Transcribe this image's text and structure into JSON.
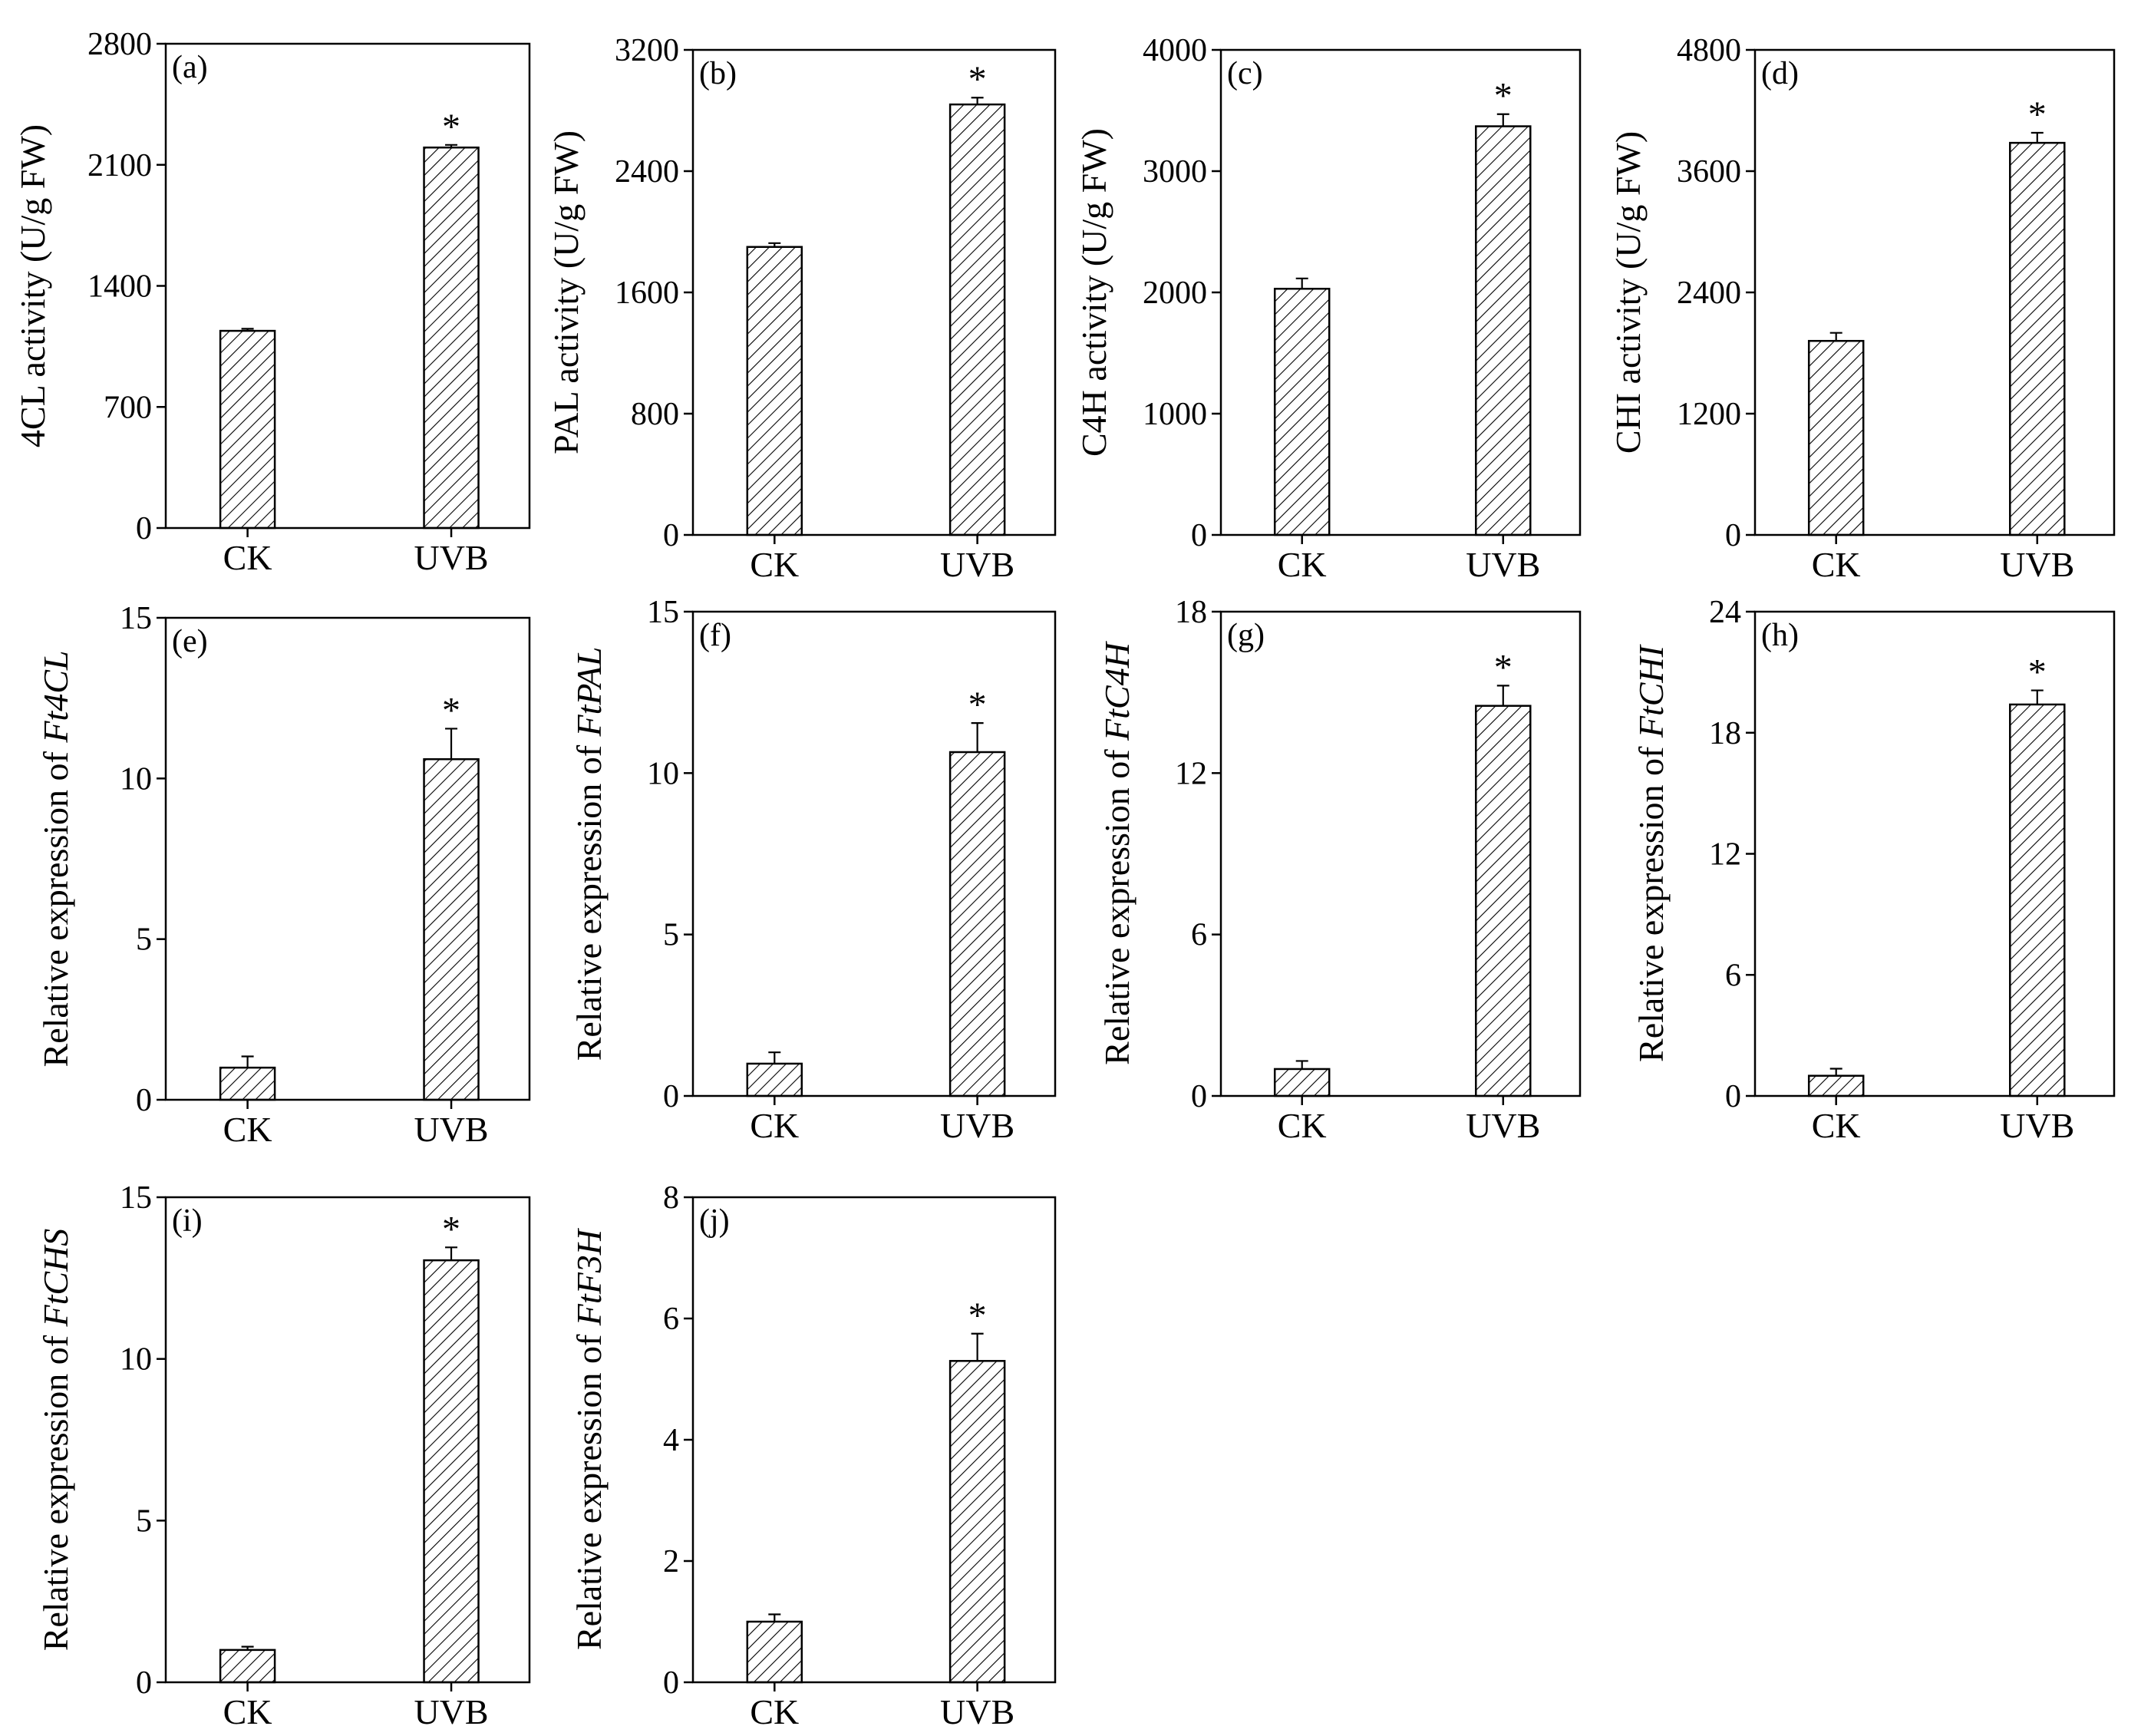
{
  "chart_data": [
    {
      "type": "bar",
      "panel_label": "(a)",
      "ylabel": "4CL activity (U/g FW)",
      "ylabel_prefix": "",
      "ylabel_italic": "",
      "categories": [
        "CK",
        "UVB"
      ],
      "values": [
        1140,
        2200
      ],
      "errors": [
        12,
        15
      ],
      "significance": [
        "",
        "*"
      ],
      "ylim": [
        0,
        2800
      ],
      "yticks": [
        0,
        700,
        1400,
        2100,
        2800
      ]
    },
    {
      "type": "bar",
      "panel_label": "(b)",
      "ylabel": "PAL activity (U/g FW)",
      "ylabel_prefix": "",
      "ylabel_italic": "",
      "categories": [
        "CK",
        "UVB"
      ],
      "values": [
        1900,
        2840
      ],
      "errors": [
        25,
        45
      ],
      "significance": [
        "",
        "*"
      ],
      "ylim": [
        0,
        3200
      ],
      "yticks": [
        0,
        800,
        1600,
        2400,
        3200
      ]
    },
    {
      "type": "bar",
      "panel_label": "(c)",
      "ylabel": "C4H activity (U/g FW)",
      "ylabel_prefix": "",
      "ylabel_italic": "",
      "categories": [
        "CK",
        "UVB"
      ],
      "values": [
        2030,
        3370
      ],
      "errors": [
        85,
        100
      ],
      "significance": [
        "",
        "*"
      ],
      "ylim": [
        0,
        4000
      ],
      "yticks": [
        0,
        1000,
        2000,
        3000,
        4000
      ]
    },
    {
      "type": "bar",
      "panel_label": "(d)",
      "ylabel": "CHI activity (U/g FW)",
      "ylabel_prefix": "",
      "ylabel_italic": "",
      "categories": [
        "CK",
        "UVB"
      ],
      "values": [
        1920,
        3880
      ],
      "errors": [
        80,
        100
      ],
      "significance": [
        "",
        "*"
      ],
      "ylim": [
        0,
        4800
      ],
      "yticks": [
        0,
        1200,
        2400,
        3600,
        4800
      ]
    },
    {
      "type": "bar",
      "panel_label": "(e)",
      "ylabel": "",
      "ylabel_prefix": "Relative expression of ",
      "ylabel_italic": "Ft4CL",
      "categories": [
        "CK",
        "UVB"
      ],
      "values": [
        1.0,
        10.6
      ],
      "errors": [
        0.35,
        0.95
      ],
      "significance": [
        "",
        "*"
      ],
      "ylim": [
        0,
        15
      ],
      "yticks": [
        0,
        5,
        10,
        15
      ]
    },
    {
      "type": "bar",
      "panel_label": "(f)",
      "ylabel": "",
      "ylabel_prefix": "Relative expression of ",
      "ylabel_italic": "FtPAL",
      "categories": [
        "CK",
        "UVB"
      ],
      "values": [
        1.0,
        10.65
      ],
      "errors": [
        0.35,
        0.9
      ],
      "significance": [
        "",
        "*"
      ],
      "ylim": [
        0,
        15
      ],
      "yticks": [
        0,
        5,
        10,
        15
      ]
    },
    {
      "type": "bar",
      "panel_label": "(g)",
      "ylabel": "",
      "ylabel_prefix": "Relative expression of ",
      "ylabel_italic": "FtC4H",
      "categories": [
        "CK",
        "UVB"
      ],
      "values": [
        1.0,
        14.5
      ],
      "errors": [
        0.3,
        0.75
      ],
      "significance": [
        "",
        "*"
      ],
      "ylim": [
        0,
        18
      ],
      "yticks": [
        0,
        6,
        12,
        18
      ]
    },
    {
      "type": "bar",
      "panel_label": "(h)",
      "ylabel": "",
      "ylabel_prefix": "Relative expression of ",
      "ylabel_italic": "FtCHI",
      "categories": [
        "CK",
        "UVB"
      ],
      "values": [
        1.0,
        19.4
      ],
      "errors": [
        0.35,
        0.7
      ],
      "significance": [
        "",
        "*"
      ],
      "ylim": [
        0,
        24
      ],
      "yticks": [
        0,
        6,
        12,
        18,
        24
      ]
    },
    {
      "type": "bar",
      "panel_label": "(i)",
      "ylabel": "",
      "ylabel_prefix": "Relative expression of ",
      "ylabel_italic": "FtCHS",
      "categories": [
        "CK",
        "UVB"
      ],
      "values": [
        1.0,
        13.05
      ],
      "errors": [
        0.1,
        0.4
      ],
      "significance": [
        "",
        "*"
      ],
      "ylim": [
        0,
        15
      ],
      "yticks": [
        0,
        5,
        10,
        15
      ]
    },
    {
      "type": "bar",
      "panel_label": "(j)",
      "ylabel": "",
      "ylabel_prefix": "Relative expression of ",
      "ylabel_italic": "FtF3H",
      "categories": [
        "CK",
        "UVB"
      ],
      "values": [
        1.0,
        5.3
      ],
      "errors": [
        0.12,
        0.45
      ],
      "significance": [
        "",
        "*"
      ],
      "ylim": [
        0,
        8
      ],
      "yticks": [
        0,
        2,
        4,
        6,
        8
      ]
    }
  ]
}
